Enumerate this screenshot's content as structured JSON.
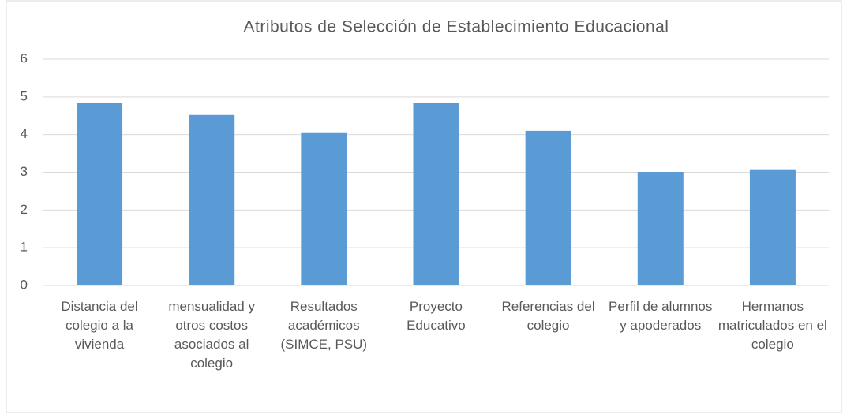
{
  "chart_data": {
    "type": "bar",
    "title": "Atributos de Selección de Establecimiento Educacional",
    "categories": [
      "Distancia del colegio a la vivienda",
      "mensualidad y otros costos asociados al colegio",
      "Resultados académicos (SIMCE, PSU)",
      "Proyecto Educativo",
      "Referencias del colegio",
      "Perfil de alumnos y apoderados",
      "Hermanos matriculados en el colegio"
    ],
    "values": [
      4.83,
      4.52,
      4.04,
      4.83,
      4.1,
      3.01,
      3.08
    ],
    "color": "#5b9bd5",
    "ylim": [
      0,
      6
    ],
    "yticks": [
      0,
      1,
      2,
      3,
      4,
      5,
      6
    ],
    "grid": true
  }
}
